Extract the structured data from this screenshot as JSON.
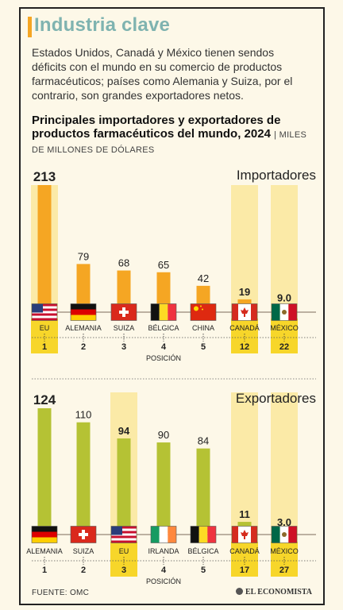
{
  "header": {
    "title": "Industria clave",
    "intro": "Estados Unidos, Canadá y México tienen sendos déficits con el mundo en su comercio de productos farmacéuticos; países como Alemania y Suiza, por el contrario, son grandes exportadores netos.",
    "subtitle": "Principales importadores y exportadores de productos farmacéuticos del mundo, 2024",
    "unit": "MILES DE MILLONES DE DÓLARES"
  },
  "chart_data": [
    {
      "type": "bar",
      "title": "Importadores",
      "color": "#f5a623",
      "categories": [
        "EU",
        "ALEMANIA",
        "SUIZA",
        "BÉLGICA",
        "CHINA",
        "CANADÁ",
        "MÉXICO"
      ],
      "values": [
        213,
        79,
        68,
        65,
        42,
        19,
        9.0
      ],
      "value_labels": [
        "213",
        "79",
        "68",
        "65",
        "42",
        "19",
        "9.0"
      ],
      "positions": [
        "1",
        "2",
        "3",
        "4",
        "5",
        "12",
        "22"
      ],
      "flags": [
        "us-flag-icon",
        "germany-flag-icon",
        "switzerland-flag-icon",
        "belgium-flag-icon",
        "china-flag-icon",
        "canada-flag-icon",
        "mexico-flag-icon"
      ],
      "highlighted": [
        true,
        false,
        false,
        false,
        false,
        true,
        true
      ],
      "position_label": "POSICIÓN"
    },
    {
      "type": "bar",
      "title": "Exportadores",
      "color": "#b5c234",
      "categories": [
        "ALEMANIA",
        "SUIZA",
        "EU",
        "IRLANDA",
        "BÉLGICA",
        "CANADÁ",
        "MÉXICO"
      ],
      "values": [
        124,
        110,
        94,
        90,
        84,
        11,
        3.0
      ],
      "value_labels": [
        "124",
        "110",
        "94",
        "90",
        "84",
        "11",
        "3.0"
      ],
      "positions": [
        "1",
        "2",
        "3",
        "4",
        "5",
        "17",
        "27"
      ],
      "flags": [
        "germany-flag-icon",
        "switzerland-flag-icon",
        "us-flag-icon",
        "ireland-flag-icon",
        "belgium-flag-icon",
        "canada-flag-icon",
        "mexico-flag-icon"
      ],
      "highlighted": [
        false,
        false,
        true,
        false,
        false,
        true,
        true
      ],
      "position_label": "POSICIÓN"
    }
  ],
  "footer": {
    "source": "FUENTE: OMC",
    "brand": "EL ECONOMISTA"
  }
}
